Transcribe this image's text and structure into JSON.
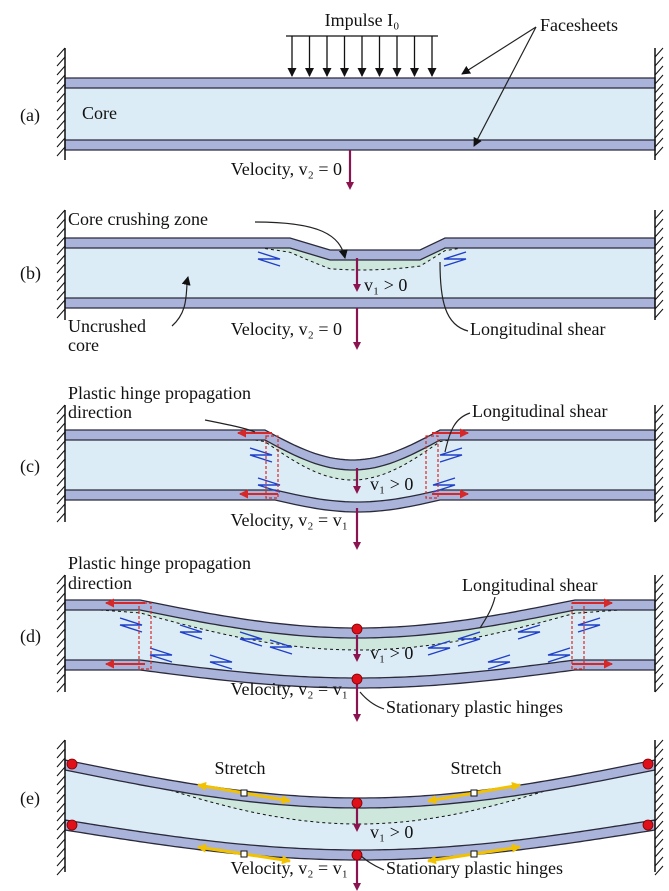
{
  "panels": [
    {
      "label": "(a)",
      "annotations": [
        "Impulse I₀",
        "Facesheets",
        "Core",
        "Velocity, v₂ = 0"
      ]
    },
    {
      "label": "(b)",
      "annotations": [
        "Core crushing zone",
        "v₁ > 0",
        "Uncrushed",
        "core",
        "Velocity, v₂ = 0",
        "Longitudinal shear"
      ]
    },
    {
      "label": "(c)",
      "annotations": [
        "Plastic hinge propagation",
        "direction",
        "Longitudinal shear",
        "v₁ > 0",
        "Velocity, v₂ = v₁"
      ]
    },
    {
      "label": "(d)",
      "annotations": [
        "Plastic hinge propagation",
        "direction",
        "Longitudinal shear",
        "v₁ > 0",
        "Velocity, v₂ = v₁",
        "Stationary plastic hinges"
      ]
    },
    {
      "label": "(e)",
      "annotations": [
        "Stretch",
        "Stretch",
        "v₁ > 0",
        "Velocity, v₂ = v₁",
        "Stationary plastic hinges"
      ]
    }
  ]
}
